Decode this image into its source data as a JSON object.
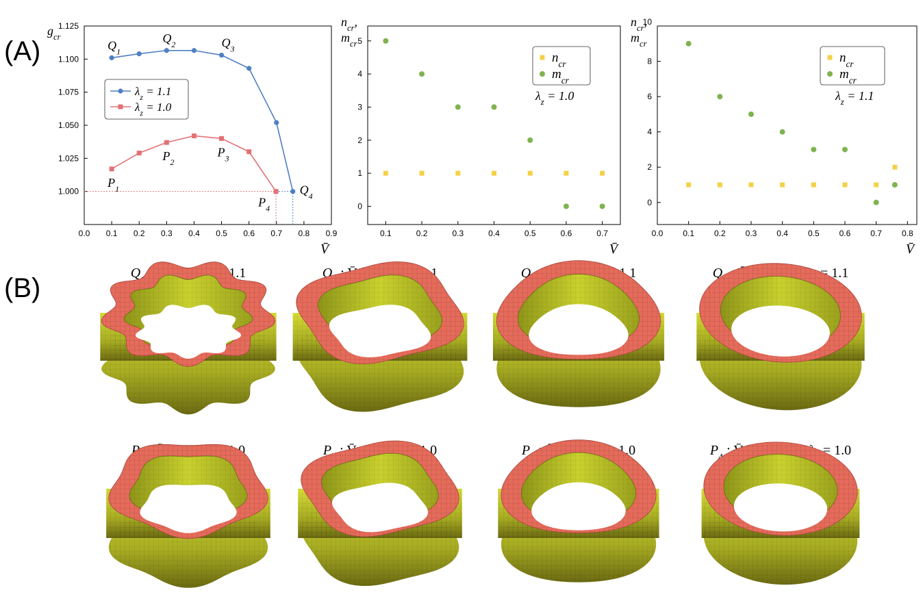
{
  "panels": {
    "a": "(A)",
    "b": "(B)"
  },
  "colors": {
    "blue": "#4f7fc4",
    "red": "#e27276",
    "yellow": "#f3d147",
    "green": "#7fb34f",
    "torus_band": "#e56b5b",
    "torus_wall": "#c4cf2c",
    "torus_dark": "#6b6a12"
  },
  "chart_data": [
    {
      "type": "line",
      "ylabel": "g_cr",
      "xlabel": "V̄",
      "xlim": [
        0.0,
        0.9
      ],
      "ylim": [
        0.975,
        1.125
      ],
      "x_ticks": [
        "0.0",
        "0.1",
        "0.2",
        "0.3",
        "0.4",
        "0.5",
        "0.6",
        "0.7",
        "0.8",
        "0.9"
      ],
      "y_ticks": [
        "1.000",
        "1.025",
        "1.050",
        "1.075",
        "1.100",
        "1.125"
      ],
      "legend_position": "center-left",
      "series": [
        {
          "name": "λ_z = 1.1",
          "marker": "circle",
          "color": "#4f7fc4",
          "x": [
            0.1,
            0.2,
            0.3,
            0.4,
            0.5,
            0.6,
            0.7,
            0.7596
          ],
          "y": [
            1.101,
            1.104,
            1.1065,
            1.1065,
            1.103,
            1.093,
            1.052,
            1.0
          ]
        },
        {
          "name": "λ_z = 1.0",
          "marker": "square",
          "color": "#e27276",
          "x": [
            0.1,
            0.2,
            0.3,
            0.4,
            0.5,
            0.6,
            0.69828
          ],
          "y": [
            1.017,
            1.029,
            1.037,
            1.042,
            1.04,
            1.03,
            1.0
          ]
        }
      ],
      "annotations": [
        {
          "text": "Q",
          "sub": "1",
          "x": 0.1,
          "y": 1.101,
          "pos": "above"
        },
        {
          "text": "Q",
          "sub": "2",
          "x": 0.3,
          "y": 1.1065,
          "pos": "above"
        },
        {
          "text": "Q",
          "sub": "3",
          "x": 0.5,
          "y": 1.103,
          "pos": "above-right"
        },
        {
          "text": "Q",
          "sub": "4",
          "x": 0.7596,
          "y": 1.0,
          "pos": "right"
        },
        {
          "text": "P",
          "sub": "1",
          "x": 0.1,
          "y": 1.017,
          "pos": "below"
        },
        {
          "text": "P",
          "sub": "2",
          "x": 0.3,
          "y": 1.037,
          "pos": "below"
        },
        {
          "text": "P",
          "sub": "3",
          "x": 0.5,
          "y": 1.04,
          "pos": "below"
        },
        {
          "text": "P",
          "sub": "4",
          "x": 0.69828,
          "y": 1.0,
          "pos": "below-left"
        }
      ],
      "reference_lines": [
        {
          "y": 1.0,
          "x_to": 0.69828,
          "color": "#e27276"
        },
        {
          "y": 1.0,
          "x_from": 0.69828,
          "x_to": 0.7596,
          "color": "#4f7fc4"
        },
        {
          "x": 0.69828,
          "y_to": 1.0,
          "color": "#e27276"
        },
        {
          "x": 0.7596,
          "y_to": 1.0,
          "color": "#4f7fc4"
        }
      ]
    },
    {
      "type": "scatter",
      "ylabel_lines": [
        "n_cr,",
        "m_cr"
      ],
      "xlabel": "V̄",
      "xlim": [
        0.05,
        0.75
      ],
      "ylim": [
        -0.55,
        5.45
      ],
      "x_ticks": [
        "0.1",
        "0.2",
        "0.3",
        "0.4",
        "0.5",
        "0.6",
        "0.7"
      ],
      "y_ticks": [
        "0",
        "1",
        "2",
        "3",
        "4",
        "5"
      ],
      "legend_position": "top-right",
      "note": "λ_z = 1.0",
      "series": [
        {
          "name": "n_cr",
          "marker": "square",
          "color": "#f3d147",
          "x": [
            0.1,
            0.2,
            0.3,
            0.4,
            0.5,
            0.6,
            0.7
          ],
          "y": [
            1,
            1,
            1,
            1,
            1,
            1,
            1
          ]
        },
        {
          "name": "m_cr",
          "marker": "circle",
          "color": "#7fb34f",
          "x": [
            0.1,
            0.2,
            0.3,
            0.4,
            0.5,
            0.6,
            0.7
          ],
          "y": [
            5,
            4,
            3,
            3,
            2,
            0,
            0
          ]
        }
      ]
    },
    {
      "type": "scatter",
      "ylabel_lines": [
        "n_cr,",
        "m_cr"
      ],
      "xlabel": "V̄",
      "xlim": [
        0.0,
        0.83
      ],
      "ylim": [
        -1.25,
        10
      ],
      "x_ticks": [
        "0.0",
        "0.1",
        "0.2",
        "0.3",
        "0.4",
        "0.5",
        "0.6",
        "0.7",
        "0.8"
      ],
      "y_ticks": [
        "0",
        "2",
        "4",
        "6",
        "8",
        "10"
      ],
      "legend_position": "top-right",
      "note": "λ_z = 1.1",
      "series": [
        {
          "name": "n_cr",
          "marker": "square",
          "color": "#f3d147",
          "x": [
            0.1,
            0.2,
            0.3,
            0.4,
            0.5,
            0.6,
            0.7,
            0.7596
          ],
          "y": [
            1,
            1,
            1,
            1,
            1,
            1,
            1,
            2
          ]
        },
        {
          "name": "m_cr",
          "marker": "circle",
          "color": "#7fb34f",
          "x": [
            0.1,
            0.2,
            0.3,
            0.4,
            0.5,
            0.6,
            0.7,
            0.7596
          ],
          "y": [
            9,
            6,
            5,
            4,
            3,
            3,
            0,
            1
          ]
        }
      ]
    }
  ],
  "shapes": {
    "row_q": [
      {
        "label": "Q",
        "sub": "1",
        "desc": " :  V̄ = 0.1,  λ_z = 1.1",
        "waves": 9,
        "amp": 0.09
      },
      {
        "label": "Q",
        "sub": "2",
        "desc": " :  V̄ = 0.3,  λ_z = 1.1",
        "waves": 4,
        "amp": 0.08
      },
      {
        "label": "Q",
        "sub": "3",
        "desc": " :  V̄ = 0.5,  λ_z = 1.1",
        "waves": 3,
        "amp": 0.06
      },
      {
        "label": "Q",
        "sub": "4",
        "desc": " :  V̄ = 0.7596,  λ_z = 1.1",
        "waves": 2,
        "amp": 0.04
      }
    ],
    "row_p": [
      {
        "label": "P",
        "sub": "1",
        "desc": " :  V̄ = 0.1,  λ_z = 1.0",
        "waves": 5,
        "amp": 0.07
      },
      {
        "label": "P",
        "sub": "2",
        "desc": " :  V̄ = 0.3,  λ_z = 1.0",
        "waves": 4,
        "amp": 0.07
      },
      {
        "label": "P",
        "sub": "3",
        "desc": " :  V̄ = 0.5,  λ_z = 1.0",
        "waves": 3,
        "amp": 0.05
      },
      {
        "label": "P",
        "sub": "4",
        "desc": " :  V̄ = 0.69828,  λ_z = 1.0",
        "waves": 2,
        "amp": 0.03
      }
    ]
  }
}
